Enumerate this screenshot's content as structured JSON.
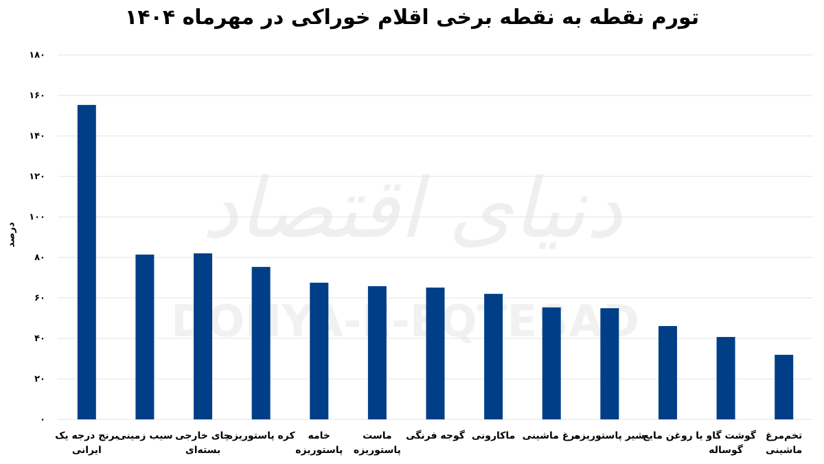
{
  "watermark": {
    "text_fa": "دنیای اقتصاد",
    "text_en": "DONYA-E-EQTESAD"
  },
  "chart_data": {
    "type": "bar",
    "title": "تورم نقطه به نقطه برخی اقلام خوراکی در مهرماه ۱۴۰۴",
    "xlabel": "",
    "ylabel": "درصد",
    "ylim": [
      0,
      180
    ],
    "yticks": [
      0,
      20,
      40,
      60,
      80,
      100,
      120,
      140,
      160,
      180
    ],
    "ytick_labels": [
      "۰",
      "۲۰",
      "۴۰",
      "۶۰",
      "۸۰",
      "۱۰۰",
      "۱۲۰",
      "۱۴۰",
      "۱۶۰",
      "۱۸۰"
    ],
    "grid": true,
    "bar_color": "#003f87",
    "categories": [
      [
        "برنج درجه یک",
        "ایرانی"
      ],
      [
        "سیب زمینی"
      ],
      [
        "چای خارجی",
        "بسته‌ای"
      ],
      [
        "کره پاستوریزه"
      ],
      [
        "خامه",
        "پاستوریزه"
      ],
      [
        "ماست",
        "پاستوریزه"
      ],
      [
        "گوجه فرنگی"
      ],
      [
        "ماکارونی"
      ],
      [
        "مرغ ماشینی"
      ],
      [
        "شیر پاستوریزه"
      ],
      [
        "روغن مایع"
      ],
      [
        "گوشت گاو یا",
        "گوساله"
      ],
      [
        "تخم‌مرغ",
        "ماشینی"
      ]
    ],
    "values": [
      155.3,
      81.4,
      82.0,
      75.3,
      67.5,
      65.8,
      65.1,
      62.0,
      55.3,
      54.9,
      46.1,
      40.7,
      31.9
    ]
  }
}
